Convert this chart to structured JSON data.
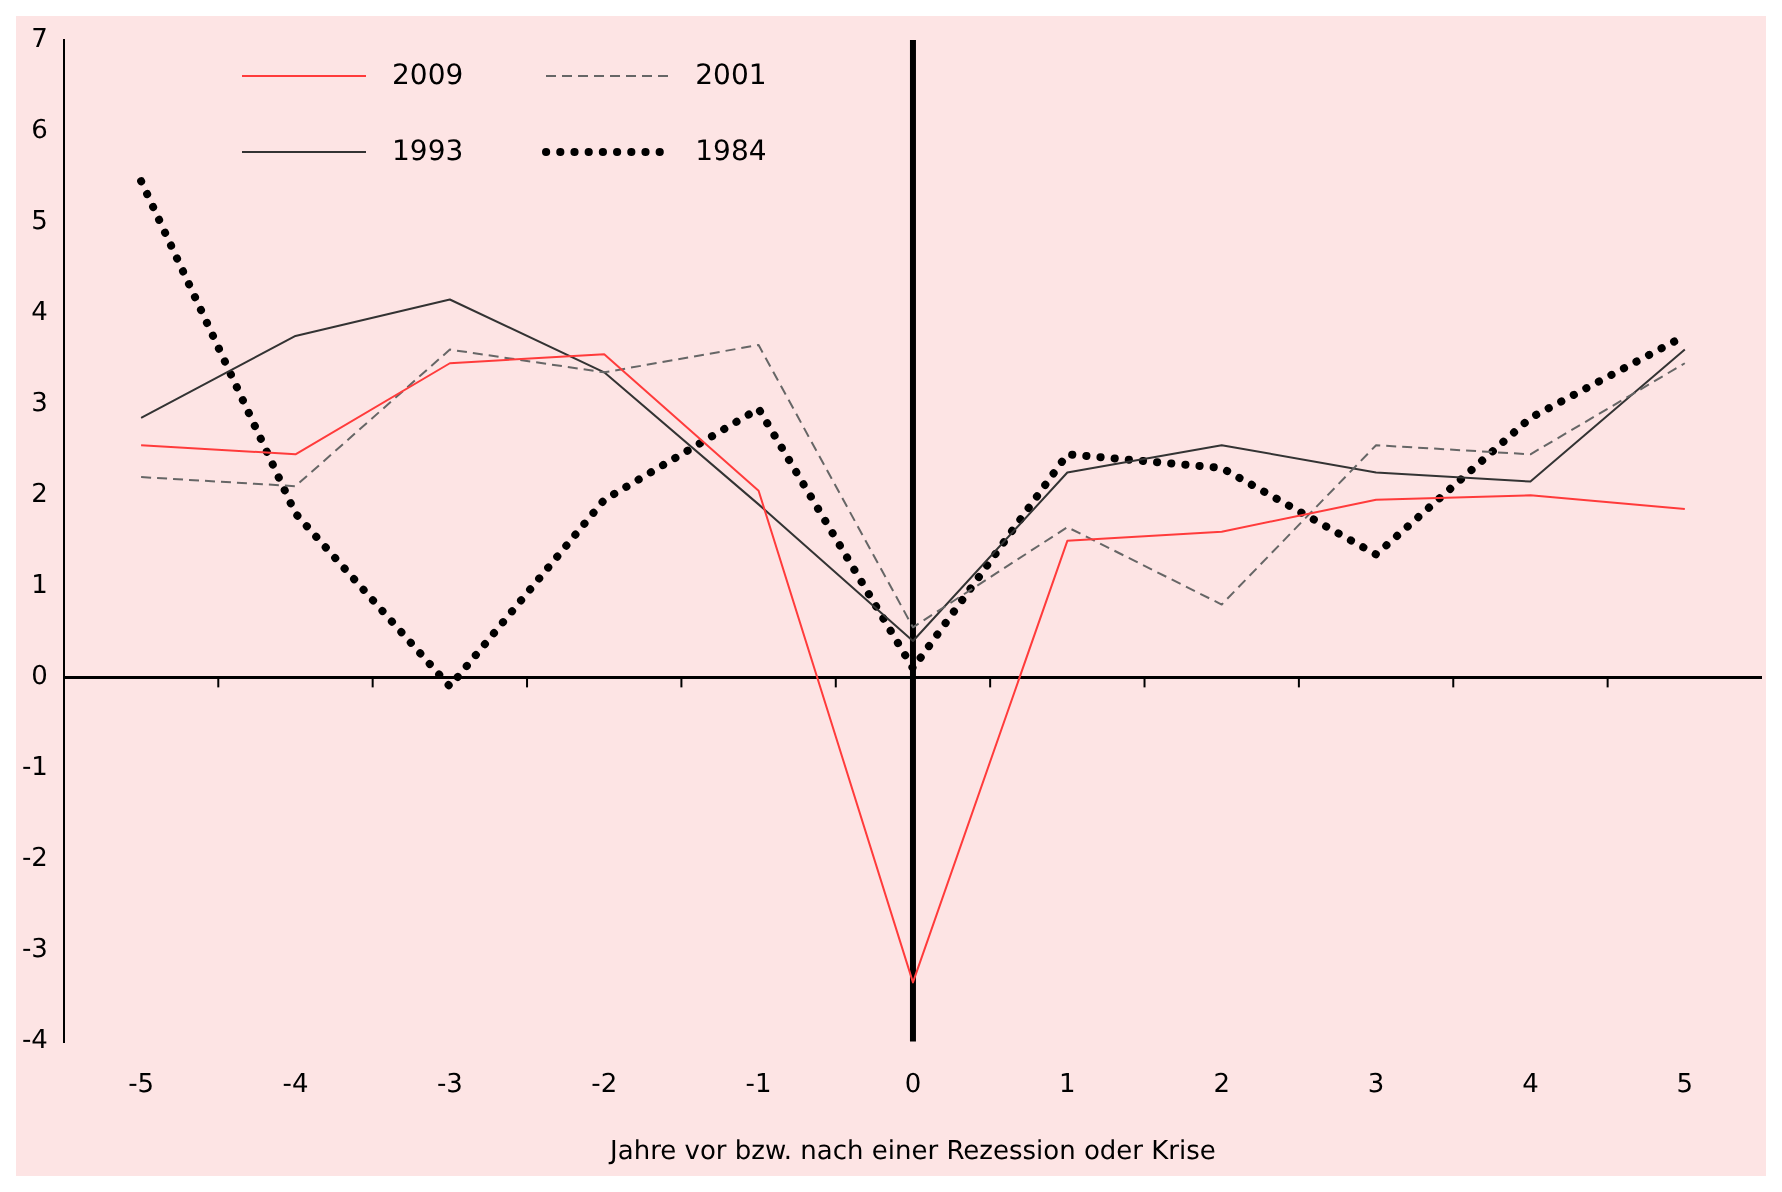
{
  "chart_data": {
    "type": "line",
    "xlabel": "Jahre vor bzw. nach einer Rezession oder Krise",
    "categories": [
      "-5",
      "-4",
      "-3",
      "-2",
      "-1",
      "0",
      "1",
      "2",
      "3",
      "4",
      "5"
    ],
    "series": [
      {
        "name": "2009",
        "color": "#ff3b3b",
        "line_style": "solid",
        "values": [
          2.55,
          2.45,
          3.45,
          3.55,
          2.05,
          -3.35,
          1.5,
          1.6,
          1.95,
          2.0,
          1.85
        ]
      },
      {
        "name": "2001",
        "color": "#666666",
        "line_style": "dashed",
        "values": [
          2.2,
          2.1,
          3.6,
          3.35,
          3.65,
          0.55,
          1.65,
          0.8,
          2.55,
          2.45,
          3.45
        ]
      },
      {
        "name": "1993",
        "color": "#333333",
        "line_style": "solid",
        "values": [
          2.85,
          3.75,
          4.15,
          3.35,
          1.9,
          0.4,
          2.25,
          2.55,
          2.25,
          2.15,
          3.6
        ]
      },
      {
        "name": "1984",
        "color": "#000000",
        "line_style": "dotted",
        "values": [
          5.45,
          1.8,
          -0.1,
          1.95,
          2.95,
          0.1,
          2.45,
          2.3,
          1.35,
          2.85,
          3.75
        ]
      }
    ],
    "ylim": [
      -4,
      7
    ],
    "yticks": [
      -4,
      -3,
      -2,
      -1,
      0,
      1,
      2,
      3,
      4,
      5,
      6,
      7
    ],
    "ref_lines": [
      {
        "axis": "x",
        "value": "0",
        "color": "#000000"
      },
      {
        "axis": "y",
        "value": 0,
        "color": "#000000"
      }
    ],
    "grid": false,
    "legend": "top left",
    "marker": "none"
  }
}
